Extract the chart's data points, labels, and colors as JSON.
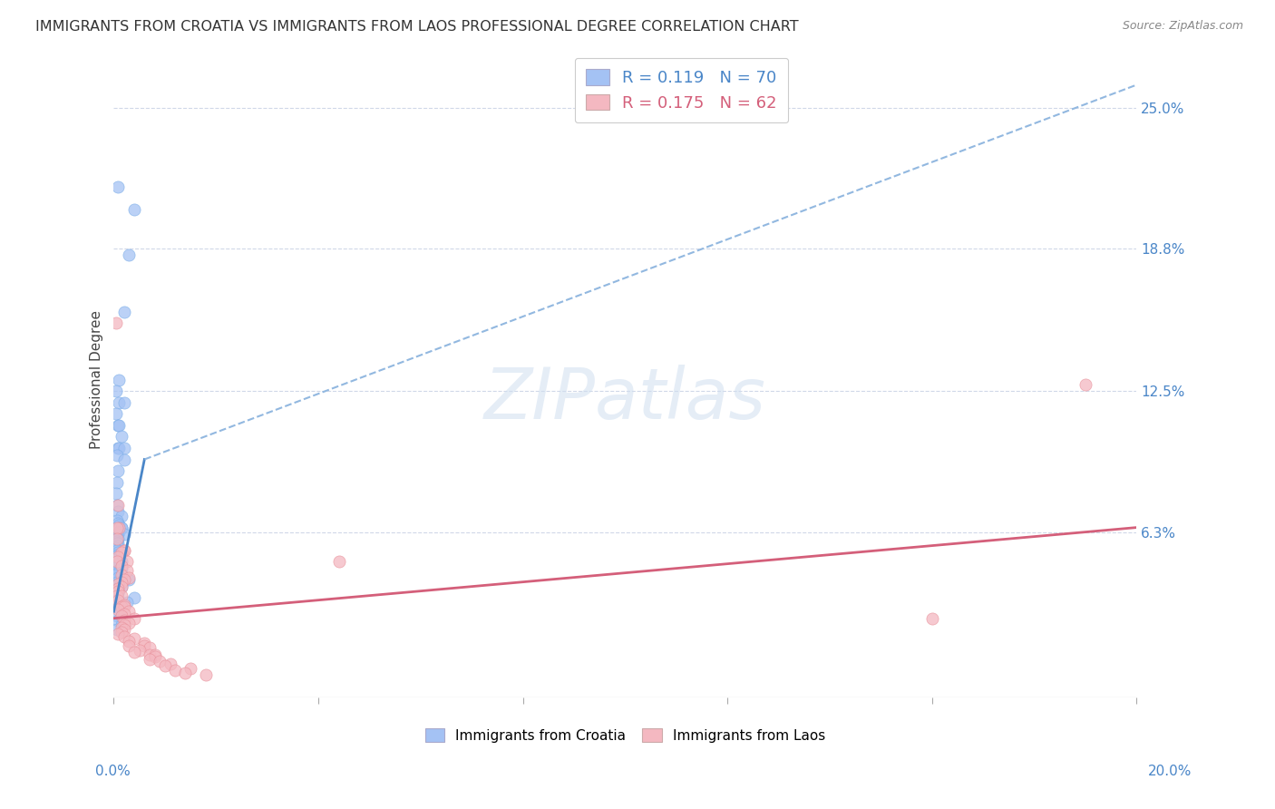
{
  "title": "IMMIGRANTS FROM CROATIA VS IMMIGRANTS FROM LAOS PROFESSIONAL DEGREE CORRELATION CHART",
  "source": "Source: ZipAtlas.com",
  "ylabel": "Professional Degree",
  "ytick_labels": [
    "25.0%",
    "18.8%",
    "12.5%",
    "6.3%"
  ],
  "ytick_values": [
    0.25,
    0.188,
    0.125,
    0.063
  ],
  "xlim": [
    0.0,
    0.2
  ],
  "ylim": [
    -0.01,
    0.27
  ],
  "croatia_color": "#a4c2f4",
  "laos_color": "#f4b8c1",
  "trendline_croatia_solid_color": "#4a86c8",
  "trendline_croatia_dash_color": "#92b8e0",
  "trendline_laos_color": "#d45f7a",
  "watermark": "ZIPatlas",
  "background_color": "#ffffff",
  "grid_color": "#d0d8e8",
  "croatia_x": [
    0.0008,
    0.004,
    0.003,
    0.002,
    0.001,
    0.0005,
    0.001,
    0.002,
    0.0005,
    0.0008,
    0.001,
    0.0015,
    0.0008,
    0.001,
    0.002,
    0.0006,
    0.002,
    0.0008,
    0.0007,
    0.0004,
    0.0006,
    0.0008,
    0.0015,
    0.0007,
    0.0008,
    0.0009,
    0.001,
    0.0015,
    0.0015,
    0.0008,
    0.0009,
    0.002,
    0.0007,
    0.0008,
    0.0006,
    0.0008,
    0.0007,
    0.0006,
    0.0003,
    0.0007,
    0.0008,
    0.0006,
    0.0003,
    0.0003,
    0.0015,
    0.0007,
    0.0008,
    0.0015,
    0.0008,
    0.0007,
    0.0003,
    0.0008,
    0.003,
    0.0007,
    0.0008,
    0.0015,
    0.0007,
    0.0008,
    0.0008,
    0.0007,
    0.004,
    0.0025,
    0.0007,
    0.0008,
    0.0015,
    0.0007,
    0.0015,
    0.0008,
    0.0015,
    0.0007
  ],
  "croatia_y": [
    0.215,
    0.205,
    0.185,
    0.16,
    0.13,
    0.125,
    0.12,
    0.12,
    0.115,
    0.11,
    0.11,
    0.105,
    0.1,
    0.1,
    0.1,
    0.097,
    0.095,
    0.09,
    0.085,
    0.08,
    0.075,
    0.072,
    0.07,
    0.068,
    0.067,
    0.066,
    0.065,
    0.065,
    0.065,
    0.063,
    0.063,
    0.062,
    0.062,
    0.06,
    0.059,
    0.058,
    0.058,
    0.057,
    0.056,
    0.055,
    0.054,
    0.053,
    0.052,
    0.051,
    0.05,
    0.049,
    0.048,
    0.047,
    0.046,
    0.045,
    0.044,
    0.043,
    0.042,
    0.041,
    0.04,
    0.039,
    0.038,
    0.037,
    0.036,
    0.035,
    0.034,
    0.032,
    0.031,
    0.03,
    0.028,
    0.026,
    0.025,
    0.024,
    0.022,
    0.02
  ],
  "laos_x": [
    0.0005,
    0.0008,
    0.001,
    0.0007,
    0.0006,
    0.002,
    0.002,
    0.0015,
    0.0008,
    0.0007,
    0.0025,
    0.0015,
    0.0025,
    0.0015,
    0.003,
    0.002,
    0.0015,
    0.0008,
    0.0015,
    0.0008,
    0.0008,
    0.0007,
    0.0015,
    0.0008,
    0.002,
    0.0015,
    0.002,
    0.0008,
    0.003,
    0.002,
    0.0015,
    0.004,
    0.002,
    0.003,
    0.002,
    0.0015,
    0.002,
    0.0015,
    0.0008,
    0.002,
    0.004,
    0.003,
    0.006,
    0.003,
    0.006,
    0.007,
    0.005,
    0.004,
    0.007,
    0.008,
    0.008,
    0.007,
    0.009,
    0.011,
    0.01,
    0.015,
    0.012,
    0.014,
    0.018,
    0.044,
    0.19,
    0.16
  ],
  "laos_y": [
    0.155,
    0.075,
    0.065,
    0.065,
    0.06,
    0.055,
    0.055,
    0.054,
    0.052,
    0.05,
    0.05,
    0.048,
    0.046,
    0.044,
    0.043,
    0.042,
    0.041,
    0.04,
    0.039,
    0.038,
    0.037,
    0.035,
    0.035,
    0.033,
    0.031,
    0.03,
    0.03,
    0.029,
    0.028,
    0.027,
    0.026,
    0.025,
    0.024,
    0.023,
    0.022,
    0.021,
    0.02,
    0.019,
    0.018,
    0.017,
    0.016,
    0.015,
    0.014,
    0.013,
    0.013,
    0.012,
    0.011,
    0.01,
    0.009,
    0.009,
    0.008,
    0.007,
    0.006,
    0.005,
    0.004,
    0.003,
    0.002,
    0.001,
    0.0,
    0.05,
    0.128,
    0.025
  ],
  "croatia_trend_x": [
    0.0,
    0.006,
    0.2
  ],
  "croatia_trend_y": [
    0.028,
    0.095,
    0.26
  ],
  "laos_trend_x": [
    0.0,
    0.2
  ],
  "laos_trend_y": [
    0.025,
    0.065
  ]
}
